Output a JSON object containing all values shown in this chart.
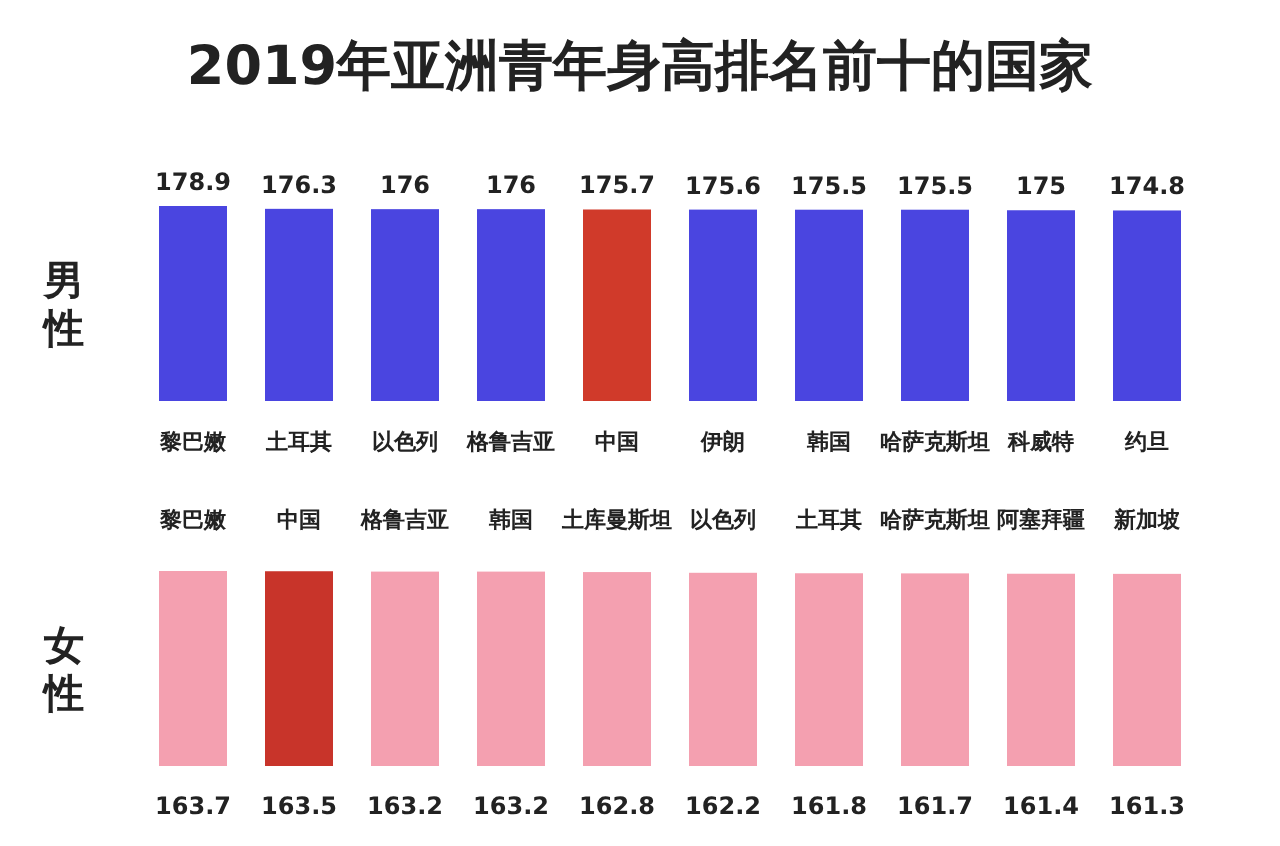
{
  "chart_data": [
    {
      "type": "bar",
      "title": "2019年亚洲青年身高排名前十的国家",
      "ylabel": "男性",
      "categories": [
        "黎巴嫩",
        "土耳其",
        "以色列",
        "格鲁吉亚",
        "中国",
        "伊朗",
        "韩国",
        "哈萨克斯坦",
        "科威特",
        "约旦"
      ],
      "values": [
        178.9,
        176.3,
        176,
        176,
        175.7,
        175.6,
        175.5,
        175.5,
        175,
        174.8
      ],
      "colors": [
        "#4a45e0",
        "#4a45e0",
        "#4a45e0",
        "#4a45e0",
        "#d03a2a",
        "#4a45e0",
        "#4a45e0",
        "#4a45e0",
        "#4a45e0",
        "#4a45e0"
      ],
      "data_labels": true
    },
    {
      "type": "bar",
      "ylabel": "女性",
      "categories": [
        "黎巴嫩",
        "中国",
        "格鲁吉亚",
        "韩国",
        "土库曼斯坦",
        "以色列",
        "土耳其",
        "哈萨克斯坦",
        "阿塞拜疆",
        "新加坡"
      ],
      "values": [
        163.7,
        163.5,
        163.2,
        163.2,
        162.8,
        162.2,
        161.8,
        161.7,
        161.4,
        161.3
      ],
      "colors": [
        "#f4a0b0",
        "#c8342a",
        "#f4a0b0",
        "#f4a0b0",
        "#f4a0b0",
        "#f4a0b0",
        "#f4a0b0",
        "#f4a0b0",
        "#f4a0b0",
        "#f4a0b0"
      ],
      "data_labels": true
    }
  ]
}
